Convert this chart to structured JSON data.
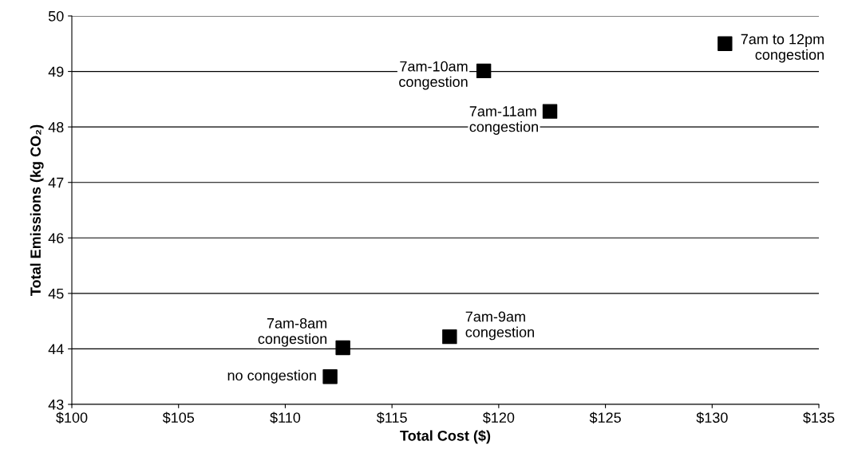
{
  "chart_data": {
    "type": "scatter",
    "xlabel": "Total Cost ($)",
    "ylabel": "Total Emissions (kg CO₂)",
    "x": [
      112.1,
      112.7,
      117.7,
      119.3,
      122.4,
      130.6
    ],
    "values": [
      43.5,
      44.02,
      44.22,
      49.01,
      48.28,
      49.5
    ],
    "color": "#000000",
    "marker": "square",
    "grid": "y",
    "xlim": [
      100,
      135
    ],
    "xticks": [
      {
        "value": 100,
        "label": "$100"
      },
      {
        "value": 105,
        "label": "$105"
      },
      {
        "value": 110,
        "label": "$110"
      },
      {
        "value": 115,
        "label": "$115"
      },
      {
        "value": 120,
        "label": "$120"
      },
      {
        "value": 125,
        "label": "$125"
      },
      {
        "value": 130,
        "label": "$130"
      },
      {
        "value": 135,
        "label": "$135"
      }
    ],
    "ylim": [
      43,
      50
    ],
    "yticks": [
      43,
      44,
      45,
      46,
      47,
      48,
      49,
      50
    ],
    "annotations": [
      {
        "text": "no congestion",
        "x": 112.1,
        "y": 43.5
      },
      {
        "text": "7am-8am\ncongestion",
        "x": 112.7,
        "y": 44.02
      },
      {
        "text": "7am-9am\ncongestion",
        "x": 117.7,
        "y": 44.22
      },
      {
        "text": "7am-10am\ncongestion",
        "x": 119.3,
        "y": 49.01
      },
      {
        "text": "7am-11am\ncongestion",
        "x": 122.4,
        "y": 48.28
      },
      {
        "text": "7am to 12pm\ncongestion",
        "x": 130.6,
        "y": 49.5
      }
    ]
  }
}
